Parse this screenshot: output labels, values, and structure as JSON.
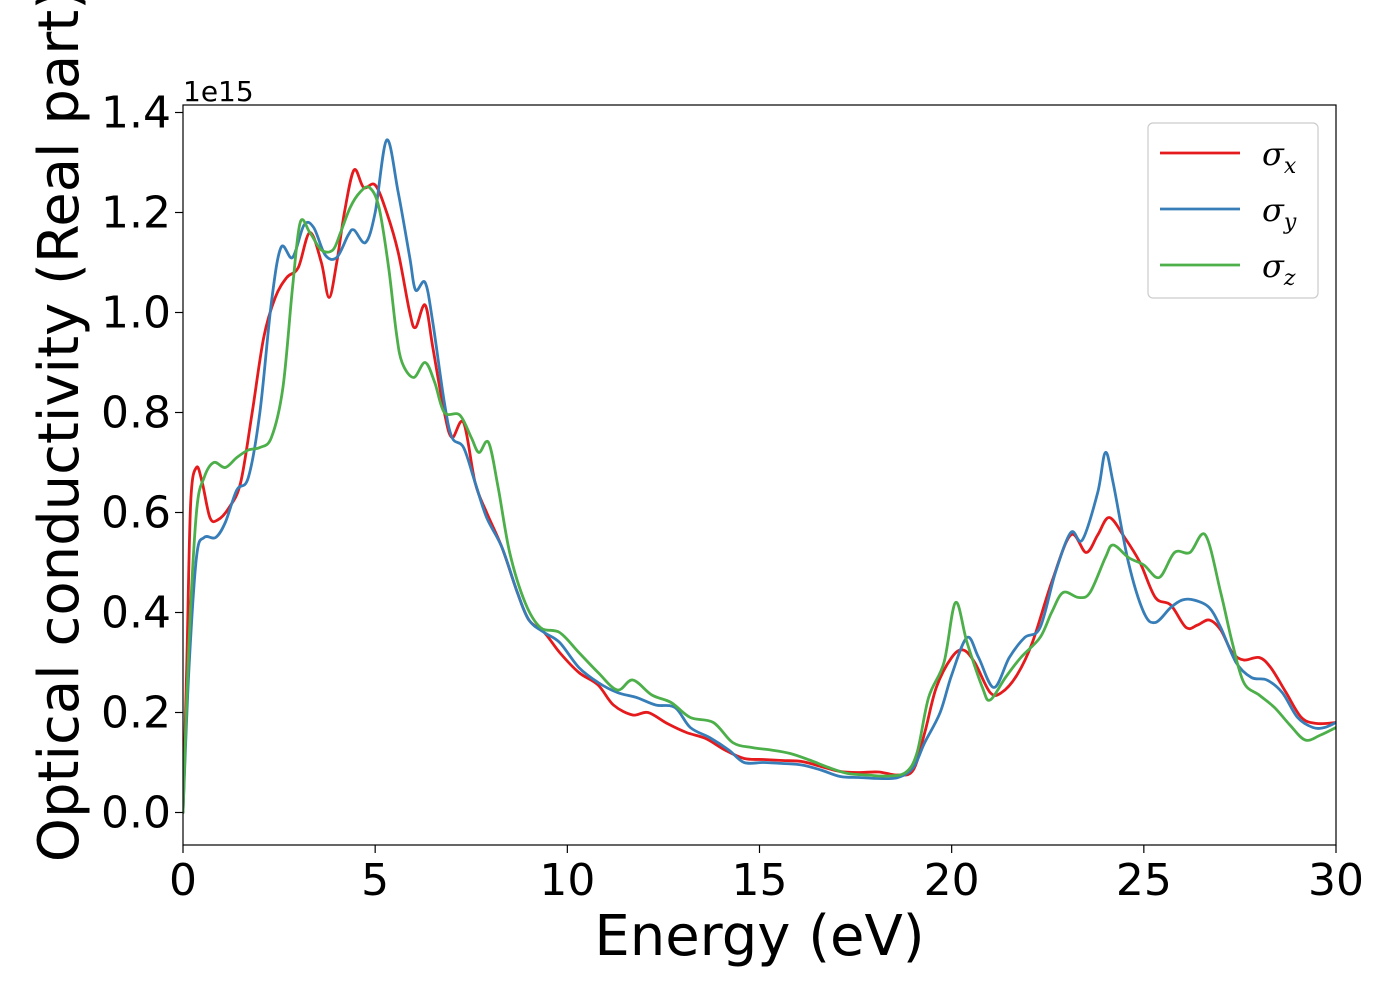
{
  "chart_data": {
    "type": "line",
    "xlabel": "Energy (eV)",
    "ylabel": "Optical conductivity (Real part)",
    "y_offset_label": "1e15",
    "xlim": [
      0,
      30
    ],
    "ylim": [
      -0.065,
      1.415
    ],
    "y_scale_note": "values in units of 1e15",
    "x_ticks": [
      0,
      5,
      10,
      15,
      20,
      25,
      30
    ],
    "x_tick_labels": [
      "0",
      "5",
      "10",
      "15",
      "20",
      "25",
      "30"
    ],
    "y_ticks": [
      0.0,
      0.2,
      0.4,
      0.6,
      0.8,
      1.0,
      1.2,
      1.4
    ],
    "y_tick_labels": [
      "0.0",
      "0.2",
      "0.4",
      "0.6",
      "0.8",
      "1.0",
      "1.2",
      "1.4"
    ],
    "grid": false,
    "legend_position": "top-right",
    "series": [
      {
        "name": "σx",
        "legend_symbol": "σ",
        "legend_subscript": "x",
        "color": "#e41a1c",
        "points": [
          [
            0,
            0.0
          ],
          [
            0.1,
            0.3
          ],
          [
            0.2,
            0.62
          ],
          [
            0.35,
            0.69
          ],
          [
            0.5,
            0.66
          ],
          [
            0.7,
            0.59
          ],
          [
            0.9,
            0.585
          ],
          [
            1.2,
            0.61
          ],
          [
            1.5,
            0.66
          ],
          [
            1.8,
            0.8
          ],
          [
            2.1,
            0.95
          ],
          [
            2.4,
            1.03
          ],
          [
            2.7,
            1.07
          ],
          [
            3.0,
            1.09
          ],
          [
            3.3,
            1.16
          ],
          [
            3.6,
            1.1
          ],
          [
            3.8,
            1.03
          ],
          [
            4.0,
            1.1
          ],
          [
            4.2,
            1.2
          ],
          [
            4.45,
            1.285
          ],
          [
            4.7,
            1.25
          ],
          [
            5.0,
            1.255
          ],
          [
            5.3,
            1.2
          ],
          [
            5.6,
            1.12
          ],
          [
            5.9,
            1.0
          ],
          [
            6.05,
            0.97
          ],
          [
            6.3,
            1.015
          ],
          [
            6.5,
            0.93
          ],
          [
            6.8,
            0.8
          ],
          [
            7.0,
            0.75
          ],
          [
            7.3,
            0.78
          ],
          [
            7.6,
            0.66
          ],
          [
            7.9,
            0.6
          ],
          [
            8.3,
            0.53
          ],
          [
            8.7,
            0.44
          ],
          [
            9.0,
            0.385
          ],
          [
            9.4,
            0.36
          ],
          [
            9.8,
            0.32
          ],
          [
            10.3,
            0.28
          ],
          [
            10.8,
            0.255
          ],
          [
            11.2,
            0.215
          ],
          [
            11.7,
            0.195
          ],
          [
            12.1,
            0.2
          ],
          [
            12.6,
            0.178
          ],
          [
            13.1,
            0.16
          ],
          [
            13.6,
            0.148
          ],
          [
            14.1,
            0.125
          ],
          [
            14.6,
            0.108
          ],
          [
            15.1,
            0.106
          ],
          [
            15.6,
            0.104
          ],
          [
            16.1,
            0.102
          ],
          [
            16.6,
            0.092
          ],
          [
            17.1,
            0.082
          ],
          [
            17.6,
            0.08
          ],
          [
            18.1,
            0.081
          ],
          [
            18.6,
            0.075
          ],
          [
            19.0,
            0.085
          ],
          [
            19.3,
            0.16
          ],
          [
            19.6,
            0.25
          ],
          [
            20.0,
            0.31
          ],
          [
            20.3,
            0.325
          ],
          [
            20.6,
            0.3
          ],
          [
            21.0,
            0.24
          ],
          [
            21.3,
            0.24
          ],
          [
            21.7,
            0.275
          ],
          [
            22.1,
            0.34
          ],
          [
            22.6,
            0.46
          ],
          [
            23.1,
            0.555
          ],
          [
            23.5,
            0.52
          ],
          [
            23.8,
            0.555
          ],
          [
            24.1,
            0.59
          ],
          [
            24.5,
            0.55
          ],
          [
            24.9,
            0.5
          ],
          [
            25.3,
            0.43
          ],
          [
            25.7,
            0.415
          ],
          [
            26.1,
            0.37
          ],
          [
            26.4,
            0.375
          ],
          [
            26.7,
            0.385
          ],
          [
            27.0,
            0.365
          ],
          [
            27.3,
            0.32
          ],
          [
            27.6,
            0.305
          ],
          [
            28.0,
            0.31
          ],
          [
            28.3,
            0.29
          ],
          [
            28.7,
            0.24
          ],
          [
            29.1,
            0.19
          ],
          [
            29.5,
            0.178
          ],
          [
            30.0,
            0.18
          ]
        ]
      },
      {
        "name": "σy",
        "legend_symbol": "σ",
        "legend_subscript": "y",
        "color": "#377eb8",
        "points": [
          [
            0,
            0.0
          ],
          [
            0.15,
            0.28
          ],
          [
            0.35,
            0.51
          ],
          [
            0.55,
            0.55
          ],
          [
            0.85,
            0.55
          ],
          [
            1.1,
            0.58
          ],
          [
            1.4,
            0.645
          ],
          [
            1.7,
            0.67
          ],
          [
            2.0,
            0.8
          ],
          [
            2.3,
            1.02
          ],
          [
            2.55,
            1.13
          ],
          [
            2.85,
            1.11
          ],
          [
            3.15,
            1.175
          ],
          [
            3.4,
            1.17
          ],
          [
            3.7,
            1.115
          ],
          [
            4.0,
            1.11
          ],
          [
            4.3,
            1.155
          ],
          [
            4.45,
            1.165
          ],
          [
            4.75,
            1.14
          ],
          [
            5.0,
            1.2
          ],
          [
            5.3,
            1.345
          ],
          [
            5.6,
            1.24
          ],
          [
            5.9,
            1.11
          ],
          [
            6.05,
            1.045
          ],
          [
            6.3,
            1.06
          ],
          [
            6.5,
            0.98
          ],
          [
            6.8,
            0.82
          ],
          [
            7.0,
            0.75
          ],
          [
            7.3,
            0.73
          ],
          [
            7.6,
            0.66
          ],
          [
            7.9,
            0.59
          ],
          [
            8.3,
            0.53
          ],
          [
            8.7,
            0.44
          ],
          [
            9.0,
            0.385
          ],
          [
            9.4,
            0.36
          ],
          [
            9.8,
            0.34
          ],
          [
            10.3,
            0.29
          ],
          [
            10.8,
            0.26
          ],
          [
            11.3,
            0.24
          ],
          [
            11.8,
            0.23
          ],
          [
            12.3,
            0.215
          ],
          [
            12.8,
            0.21
          ],
          [
            13.2,
            0.17
          ],
          [
            13.7,
            0.15
          ],
          [
            14.2,
            0.125
          ],
          [
            14.6,
            0.1
          ],
          [
            15.1,
            0.1
          ],
          [
            15.6,
            0.098
          ],
          [
            16.1,
            0.095
          ],
          [
            16.6,
            0.085
          ],
          [
            17.1,
            0.072
          ],
          [
            17.6,
            0.07
          ],
          [
            18.1,
            0.068
          ],
          [
            18.6,
            0.07
          ],
          [
            19.0,
            0.09
          ],
          [
            19.3,
            0.14
          ],
          [
            19.7,
            0.2
          ],
          [
            20.0,
            0.275
          ],
          [
            20.4,
            0.35
          ],
          [
            20.7,
            0.31
          ],
          [
            21.1,
            0.25
          ],
          [
            21.5,
            0.31
          ],
          [
            21.9,
            0.35
          ],
          [
            22.3,
            0.37
          ],
          [
            22.7,
            0.48
          ],
          [
            23.1,
            0.56
          ],
          [
            23.4,
            0.545
          ],
          [
            23.8,
            0.64
          ],
          [
            24.0,
            0.72
          ],
          [
            24.2,
            0.66
          ],
          [
            24.6,
            0.5
          ],
          [
            25.0,
            0.4
          ],
          [
            25.3,
            0.38
          ],
          [
            25.7,
            0.41
          ],
          [
            26.0,
            0.425
          ],
          [
            26.3,
            0.425
          ],
          [
            26.7,
            0.41
          ],
          [
            27.0,
            0.37
          ],
          [
            27.4,
            0.3
          ],
          [
            27.8,
            0.27
          ],
          [
            28.2,
            0.265
          ],
          [
            28.6,
            0.24
          ],
          [
            29.0,
            0.19
          ],
          [
            29.4,
            0.17
          ],
          [
            29.7,
            0.17
          ],
          [
            30.0,
            0.18
          ]
        ]
      },
      {
        "name": "σz",
        "legend_symbol": "σ",
        "legend_subscript": "z",
        "color": "#4daf4a",
        "points": [
          [
            0,
            0.0
          ],
          [
            0.15,
            0.33
          ],
          [
            0.35,
            0.6
          ],
          [
            0.55,
            0.67
          ],
          [
            0.8,
            0.7
          ],
          [
            1.1,
            0.69
          ],
          [
            1.4,
            0.71
          ],
          [
            1.7,
            0.725
          ],
          [
            2.0,
            0.73
          ],
          [
            2.3,
            0.75
          ],
          [
            2.6,
            0.85
          ],
          [
            2.85,
            1.05
          ],
          [
            3.05,
            1.18
          ],
          [
            3.3,
            1.16
          ],
          [
            3.6,
            1.125
          ],
          [
            3.9,
            1.125
          ],
          [
            4.1,
            1.16
          ],
          [
            4.35,
            1.21
          ],
          [
            4.6,
            1.24
          ],
          [
            4.85,
            1.25
          ],
          [
            5.1,
            1.21
          ],
          [
            5.35,
            1.09
          ],
          [
            5.55,
            0.96
          ],
          [
            5.7,
            0.9
          ],
          [
            6.0,
            0.87
          ],
          [
            6.3,
            0.9
          ],
          [
            6.55,
            0.86
          ],
          [
            6.8,
            0.8
          ],
          [
            7.2,
            0.795
          ],
          [
            7.5,
            0.75
          ],
          [
            7.7,
            0.72
          ],
          [
            7.95,
            0.74
          ],
          [
            8.2,
            0.65
          ],
          [
            8.5,
            0.52
          ],
          [
            8.9,
            0.42
          ],
          [
            9.3,
            0.37
          ],
          [
            9.8,
            0.36
          ],
          [
            10.3,
            0.32
          ],
          [
            10.8,
            0.28
          ],
          [
            11.3,
            0.245
          ],
          [
            11.7,
            0.265
          ],
          [
            12.2,
            0.235
          ],
          [
            12.7,
            0.22
          ],
          [
            13.2,
            0.19
          ],
          [
            13.8,
            0.18
          ],
          [
            14.3,
            0.14
          ],
          [
            14.8,
            0.13
          ],
          [
            15.3,
            0.125
          ],
          [
            15.8,
            0.118
          ],
          [
            16.3,
            0.105
          ],
          [
            16.8,
            0.09
          ],
          [
            17.3,
            0.078
          ],
          [
            17.8,
            0.075
          ],
          [
            18.3,
            0.073
          ],
          [
            18.8,
            0.08
          ],
          [
            19.1,
            0.12
          ],
          [
            19.4,
            0.23
          ],
          [
            19.8,
            0.3
          ],
          [
            20.1,
            0.42
          ],
          [
            20.4,
            0.34
          ],
          [
            20.8,
            0.25
          ],
          [
            21.0,
            0.225
          ],
          [
            21.4,
            0.27
          ],
          [
            21.8,
            0.31
          ],
          [
            22.3,
            0.35
          ],
          [
            22.6,
            0.4
          ],
          [
            22.9,
            0.44
          ],
          [
            23.3,
            0.43
          ],
          [
            23.6,
            0.44
          ],
          [
            24.0,
            0.51
          ],
          [
            24.2,
            0.535
          ],
          [
            24.6,
            0.51
          ],
          [
            25.0,
            0.495
          ],
          [
            25.4,
            0.47
          ],
          [
            25.8,
            0.52
          ],
          [
            26.2,
            0.52
          ],
          [
            26.6,
            0.555
          ],
          [
            27.0,
            0.44
          ],
          [
            27.3,
            0.34
          ],
          [
            27.6,
            0.26
          ],
          [
            28.0,
            0.235
          ],
          [
            28.4,
            0.21
          ],
          [
            28.8,
            0.175
          ],
          [
            29.2,
            0.145
          ],
          [
            29.6,
            0.155
          ],
          [
            30.0,
            0.17
          ]
        ]
      }
    ]
  }
}
